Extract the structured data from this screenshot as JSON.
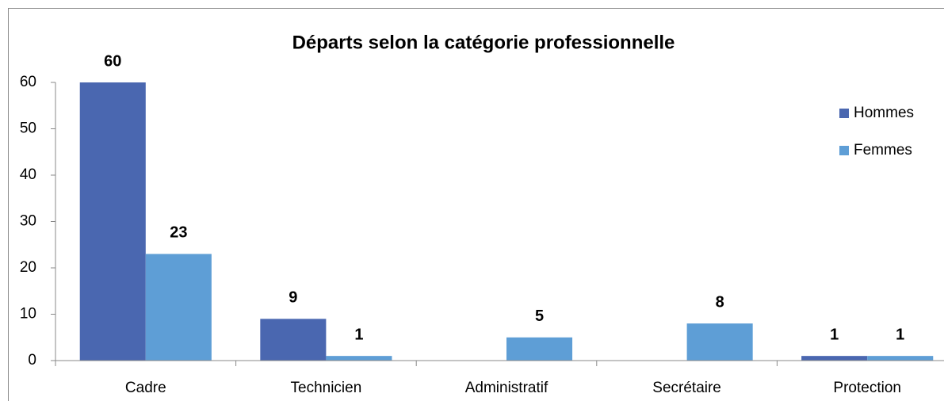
{
  "chart_data": {
    "type": "bar",
    "title": "Départs selon la catégorie professionnelle",
    "categories": [
      "Cadre",
      "Technicien",
      "Administratif",
      "Secrétaire",
      "Protection"
    ],
    "series": [
      {
        "name": "Hommes",
        "color": "#4a67b0",
        "values": [
          60,
          9,
          null,
          null,
          1
        ]
      },
      {
        "name": "Femmes",
        "color": "#5e9ed6",
        "values": [
          23,
          1,
          5,
          8,
          1
        ]
      }
    ],
    "ylim": [
      0,
      60
    ],
    "yticks": [
      0,
      10,
      20,
      30,
      40,
      50,
      60
    ],
    "grid": false,
    "legend": "right"
  }
}
